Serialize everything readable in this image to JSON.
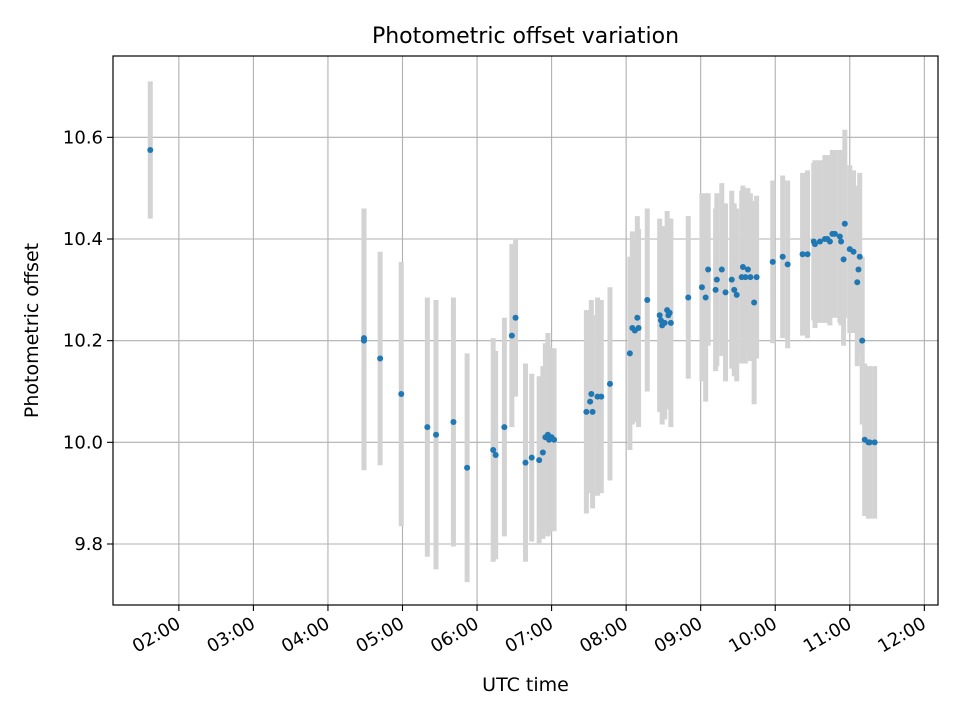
{
  "chart_data": {
    "type": "scatter",
    "title": "Photometric offset variation",
    "xlabel": "UTC time",
    "ylabel": "Photometric offset",
    "x_axis": "time",
    "xlim": [
      "01:07",
      "12:11"
    ],
    "ylim": [
      9.68,
      10.76
    ],
    "x_ticks": [
      "02:00",
      "03:00",
      "04:00",
      "05:00",
      "06:00",
      "07:00",
      "08:00",
      "09:00",
      "10:00",
      "11:00",
      "12:00"
    ],
    "y_ticks": [
      9.8,
      10.0,
      10.2,
      10.4,
      10.6
    ],
    "grid": true,
    "colors": {
      "point": "#1f77b4",
      "errorbar": "#d3d3d3",
      "grid": "#b0b0b0"
    },
    "series": [
      {
        "x": [
          "01:37",
          "04:29",
          "04:29",
          "04:42",
          "04:59",
          "05:20",
          "05:27",
          "05:41",
          "05:52",
          "06:13",
          "06:15",
          "06:22",
          "06:28",
          "06:31",
          "06:39",
          "06:44",
          "06:50",
          "06:53",
          "06:55",
          "06:57",
          "06:58",
          "07:00",
          "07:02",
          "07:28",
          "07:31",
          "07:32",
          "07:33",
          "07:37",
          "07:40",
          "07:47",
          "08:03",
          "08:05",
          "08:07",
          "08:09",
          "08:10",
          "08:17",
          "08:27",
          "08:28",
          "08:29",
          "08:31",
          "08:33",
          "08:34",
          "08:35",
          "08:36",
          "08:50",
          "09:01",
          "09:04",
          "09:06",
          "09:12",
          "09:13",
          "09:17",
          "09:20",
          "09:25",
          "09:27",
          "09:29",
          "09:33",
          "09:34",
          "09:36",
          "09:38",
          "09:40",
          "09:43",
          "09:45",
          "09:58",
          "10:06",
          "10:10",
          "10:22",
          "10:26",
          "10:31",
          "10:32",
          "10:36",
          "10:40",
          "10:42",
          "10:44",
          "10:46",
          "10:48",
          "10:52",
          "10:53",
          "10:55",
          "10:56",
          "11:00",
          "11:03",
          "11:06",
          "11:07",
          "11:08",
          "11:10",
          "11:12",
          "11:15",
          "11:16",
          "11:20"
        ],
        "y": [
          10.575,
          10.205,
          10.2,
          10.165,
          10.095,
          10.03,
          10.015,
          10.04,
          9.95,
          9.985,
          9.975,
          10.03,
          10.21,
          10.245,
          9.96,
          9.97,
          9.965,
          9.98,
          10.01,
          10.015,
          10.005,
          10.01,
          10.005,
          10.06,
          10.08,
          10.095,
          10.06,
          10.09,
          10.09,
          10.115,
          10.175,
          10.225,
          10.22,
          10.245,
          10.225,
          10.28,
          10.25,
          10.24,
          10.23,
          10.235,
          10.26,
          10.25,
          10.255,
          10.235,
          10.285,
          10.305,
          10.285,
          10.34,
          10.3,
          10.32,
          10.34,
          10.295,
          10.32,
          10.3,
          10.29,
          10.325,
          10.345,
          10.325,
          10.34,
          10.325,
          10.275,
          10.325,
          10.355,
          10.365,
          10.35,
          10.37,
          10.37,
          10.395,
          10.39,
          10.395,
          10.4,
          10.4,
          10.395,
          10.41,
          10.41,
          10.405,
          10.395,
          10.36,
          10.43,
          10.38,
          10.375,
          10.315,
          10.34,
          10.365,
          10.2,
          10.005,
          10.0,
          10.0,
          10.0
        ],
        "err": [
          0.135,
          0.255,
          0.255,
          0.21,
          0.26,
          0.255,
          0.265,
          0.245,
          0.225,
          0.22,
          0.205,
          0.215,
          0.18,
          0.155,
          0.195,
          0.165,
          0.165,
          0.17,
          0.185,
          0.2,
          0.185,
          0.175,
          0.18,
          0.2,
          0.18,
          0.185,
          0.19,
          0.195,
          0.19,
          0.19,
          0.19,
          0.19,
          0.18,
          0.2,
          0.195,
          0.18,
          0.19,
          0.18,
          0.195,
          0.19,
          0.195,
          0.185,
          0.185,
          0.205,
          0.16,
          0.185,
          0.205,
          0.15,
          0.16,
          0.17,
          0.17,
          0.175,
          0.175,
          0.17,
          0.17,
          0.17,
          0.16,
          0.17,
          0.16,
          0.165,
          0.2,
          0.16,
          0.16,
          0.16,
          0.165,
          0.16,
          0.165,
          0.155,
          0.165,
          0.16,
          0.165,
          0.165,
          0.165,
          0.165,
          0.165,
          0.17,
          0.165,
          0.17,
          0.185,
          0.165,
          0.16,
          0.165,
          0.165,
          0.165,
          0.165,
          0.15,
          0.15,
          0.15,
          0.15
        ]
      }
    ]
  }
}
